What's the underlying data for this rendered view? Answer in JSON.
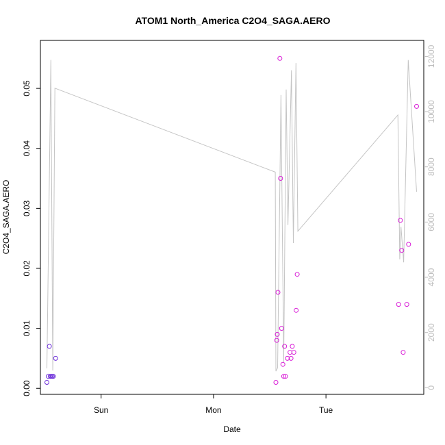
{
  "chart_data": {
    "type": "scatter",
    "title": "ATOM1 North_America C2O4_SAGA.AERO",
    "xlabel": "Date",
    "ylabel": "C2O4_SAGA.AERO",
    "x_unit": "days after Sat 00:00",
    "xlim": [
      0.46,
      3.87
    ],
    "ylim": [
      -0.001,
      0.058
    ],
    "x_ticks": [
      {
        "value": 1,
        "label": "Sun"
      },
      {
        "value": 2,
        "label": "Mon"
      },
      {
        "value": 3,
        "label": "Tue"
      }
    ],
    "y_ticks": [
      {
        "value": 0.0,
        "label": "0.00"
      },
      {
        "value": 0.01,
        "label": "0.01"
      },
      {
        "value": 0.02,
        "label": "0.02"
      },
      {
        "value": 0.03,
        "label": "0.03"
      },
      {
        "value": 0.04,
        "label": "0.04"
      },
      {
        "value": 0.05,
        "label": "0.05"
      }
    ],
    "y2lim": [
      -240,
      12580
    ],
    "y2_ticks": [
      {
        "value": 0,
        "label": "0"
      },
      {
        "value": 2000,
        "label": "2000"
      },
      {
        "value": 4000,
        "label": "4000"
      },
      {
        "value": 6000,
        "label": "6000"
      },
      {
        "value": 8000,
        "label": "8000"
      },
      {
        "value": 10000,
        "label": "10000"
      },
      {
        "value": 12000,
        "label": "12000"
      }
    ],
    "grid": false,
    "points": [
      {
        "x": 0.518,
        "y": 0.001,
        "color": "#6a2bd9"
      },
      {
        "x": 0.53,
        "y": 0.002,
        "color": "#6a2bd9"
      },
      {
        "x": 0.54,
        "y": 0.007,
        "color": "#6a2bd9"
      },
      {
        "x": 0.548,
        "y": 0.002,
        "color": "#6a2bd9"
      },
      {
        "x": 0.557,
        "y": 0.002,
        "color": "#6a2bd9"
      },
      {
        "x": 0.566,
        "y": 0.002,
        "color": "#6a2bd9"
      },
      {
        "x": 0.575,
        "y": 0.002,
        "color": "#6a2bd9"
      },
      {
        "x": 0.595,
        "y": 0.005,
        "color": "#6a2bd9"
      },
      {
        "x": 2.555,
        "y": 0.001,
        "color": "#d81bd6"
      },
      {
        "x": 2.562,
        "y": 0.008,
        "color": "#d81bd6"
      },
      {
        "x": 2.567,
        "y": 0.009,
        "color": "#d81bd6"
      },
      {
        "x": 2.573,
        "y": 0.016,
        "color": "#d81bd6"
      },
      {
        "x": 2.59,
        "y": 0.055,
        "color": "#d81bd6"
      },
      {
        "x": 2.596,
        "y": 0.035,
        "color": "#d81bd6"
      },
      {
        "x": 2.605,
        "y": 0.01,
        "color": "#d81bd6"
      },
      {
        "x": 2.617,
        "y": 0.004,
        "color": "#d81bd6"
      },
      {
        "x": 2.624,
        "y": 0.002,
        "color": "#d81bd6"
      },
      {
        "x": 2.632,
        "y": 0.007,
        "color": "#d81bd6"
      },
      {
        "x": 2.64,
        "y": 0.002,
        "color": "#d81bd6"
      },
      {
        "x": 2.657,
        "y": 0.005,
        "color": "#d81bd6"
      },
      {
        "x": 2.68,
        "y": 0.006,
        "color": "#d81bd6"
      },
      {
        "x": 2.689,
        "y": 0.005,
        "color": "#d81bd6"
      },
      {
        "x": 2.7,
        "y": 0.007,
        "color": "#d81bd6"
      },
      {
        "x": 2.714,
        "y": 0.006,
        "color": "#d81bd6"
      },
      {
        "x": 2.735,
        "y": 0.013,
        "color": "#d81bd6"
      },
      {
        "x": 2.744,
        "y": 0.019,
        "color": "#d81bd6"
      },
      {
        "x": 3.646,
        "y": 0.014,
        "color": "#d81bd6"
      },
      {
        "x": 3.662,
        "y": 0.028,
        "color": "#d81bd6"
      },
      {
        "x": 3.674,
        "y": 0.023,
        "color": "#d81bd6"
      },
      {
        "x": 3.687,
        "y": 0.006,
        "color": "#d81bd6"
      },
      {
        "x": 3.719,
        "y": 0.014,
        "color": "#d81bd6"
      },
      {
        "x": 3.735,
        "y": 0.024,
        "color": "#d81bd6"
      },
      {
        "x": 3.806,
        "y": 0.047,
        "color": "#d81bd6"
      }
    ],
    "line": {
      "axis": "right",
      "color": "#c4c4c4",
      "values": [
        {
          "x": 0.518,
          "y": 700
        },
        {
          "x": 0.553,
          "y": 11870
        },
        {
          "x": 0.57,
          "y": 620
        },
        {
          "x": 0.589,
          "y": 10850
        },
        {
          "x": 2.549,
          "y": 7810
        },
        {
          "x": 2.555,
          "y": 600
        },
        {
          "x": 2.57,
          "y": 720
        },
        {
          "x": 2.6,
          "y": 10600
        },
        {
          "x": 2.624,
          "y": 900
        },
        {
          "x": 2.646,
          "y": 10800
        },
        {
          "x": 2.662,
          "y": 5890
        },
        {
          "x": 2.693,
          "y": 11500
        },
        {
          "x": 2.71,
          "y": 5240
        },
        {
          "x": 2.733,
          "y": 11760
        },
        {
          "x": 2.75,
          "y": 5670
        },
        {
          "x": 3.64,
          "y": 9880
        },
        {
          "x": 3.656,
          "y": 4650
        },
        {
          "x": 3.667,
          "y": 5830
        },
        {
          "x": 3.691,
          "y": 4540
        },
        {
          "x": 3.732,
          "y": 11870
        },
        {
          "x": 3.806,
          "y": 7100
        }
      ]
    }
  }
}
